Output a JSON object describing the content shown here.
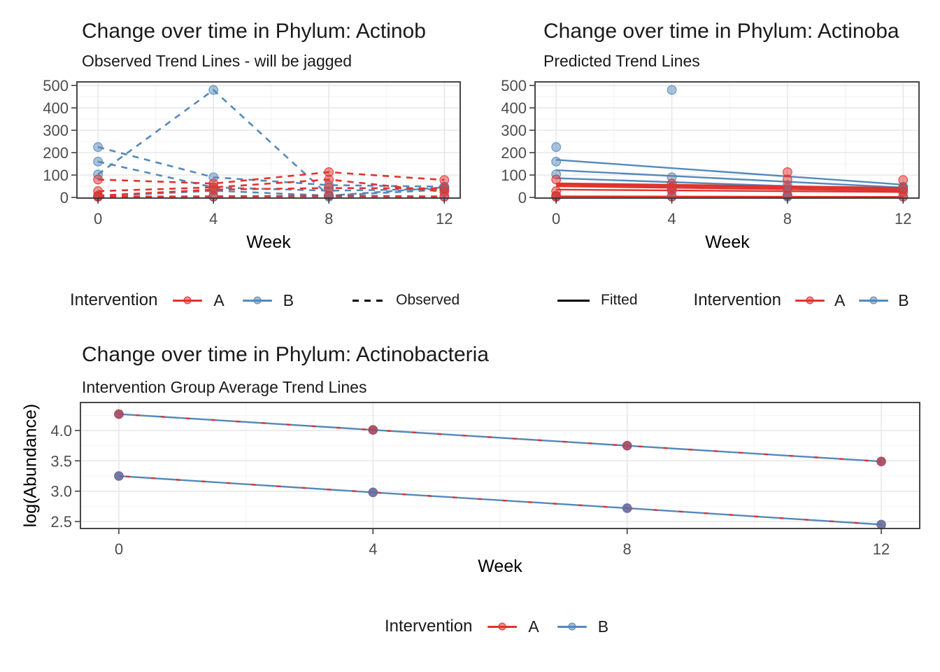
{
  "colors": {
    "intervention_a": "#E0332E",
    "intervention_b": "#5589BB",
    "avg_point_a": "#A4455C",
    "avg_point_b": "#666A9A",
    "grid_major": "#E5E5E5",
    "grid_minor": "#F2F2F2",
    "panel_border": "#333333",
    "tick_label": "#4D4D4D",
    "linetype_key": "#000000"
  },
  "chart_data": [
    {
      "id": "observed",
      "type": "line",
      "title": "Change over time in Phylum: Actinob",
      "subtitle": "Observed Trend Lines - will be jagged",
      "xlabel": "Week",
      "x_ticks": [
        0,
        4,
        8,
        12
      ],
      "x_minor": [
        2,
        6,
        10
      ],
      "y_ticks": [
        0,
        100,
        200,
        300,
        400,
        500
      ],
      "y_minor": [
        50,
        150,
        250,
        350,
        450
      ],
      "xlim": [
        -0.73,
        12.55
      ],
      "ylim": [
        -3,
        516
      ],
      "grid": true,
      "legend_position": "bottom",
      "series": [
        {
          "group": "B",
          "x": [
            0,
            4,
            8,
            12
          ],
          "y": [
            225,
            90,
            55,
            48
          ],
          "line": "dashed",
          "points": true
        },
        {
          "group": "B",
          "x": [
            0,
            4,
            8,
            12
          ],
          "y": [
            160,
            45,
            30,
            38
          ],
          "line": "dashed",
          "points": true
        },
        {
          "group": "B",
          "x": [
            0,
            4,
            8,
            12
          ],
          "y": [
            103,
            480,
            8,
            45
          ],
          "line": "dashed",
          "points": true
        },
        {
          "group": "B",
          "x": [
            0,
            4,
            8,
            12
          ],
          "y": [
            5,
            30,
            8,
            35
          ],
          "line": "dashed",
          "points": true
        },
        {
          "group": "B",
          "x": [
            0,
            4,
            8,
            12
          ],
          "y": [
            3,
            3,
            3,
            3
          ],
          "line": "dashed",
          "points": true
        },
        {
          "group": "A",
          "x": [
            0,
            4,
            8,
            12
          ],
          "y": [
            80,
            62,
            113,
            78
          ],
          "line": "dashed",
          "points": true
        },
        {
          "group": "A",
          "x": [
            0,
            4,
            8,
            12
          ],
          "y": [
            28,
            45,
            80,
            25
          ],
          "line": "dashed",
          "points": true
        },
        {
          "group": "A",
          "x": [
            0,
            4,
            8,
            12
          ],
          "y": [
            8,
            35,
            42,
            40
          ],
          "line": "dashed",
          "points": true
        },
        {
          "group": "A",
          "x": [
            0,
            4,
            8,
            12
          ],
          "y": [
            3,
            5,
            8,
            4
          ],
          "line": "dashed",
          "points": true
        }
      ]
    },
    {
      "id": "fitted",
      "type": "line",
      "title": "Change over time in Phylum: Actinoba",
      "subtitle": "Predicted Trend Lines",
      "xlabel": "Week",
      "x_ticks": [
        0,
        4,
        8,
        12
      ],
      "x_minor": [
        2,
        6,
        10
      ],
      "y_ticks": [
        0,
        100,
        200,
        300,
        400,
        500
      ],
      "y_minor": [
        50,
        150,
        250,
        350,
        450
      ],
      "xlim": [
        -0.73,
        12.55
      ],
      "ylim": [
        -3,
        516
      ],
      "grid": true,
      "legend_position": "bottom",
      "series": [
        {
          "group": "B",
          "x": [
            0,
            12
          ],
          "y": [
            168,
            57
          ],
          "line": "solid",
          "points": false
        },
        {
          "group": "B",
          "x": [
            0,
            12
          ],
          "y": [
            122,
            44
          ],
          "line": "solid",
          "points": false
        },
        {
          "group": "B",
          "x": [
            0,
            12
          ],
          "y": [
            86,
            33
          ],
          "line": "solid",
          "points": false
        },
        {
          "group": "B",
          "x": [
            0,
            12
          ],
          "y": [
            5,
            2
          ],
          "line": "solid",
          "points": false
        },
        {
          "group": "A",
          "x": [
            0,
            12
          ],
          "y": [
            63,
            43
          ],
          "line": "solid",
          "points": false
        },
        {
          "group": "A",
          "x": [
            0,
            12
          ],
          "y": [
            57,
            37
          ],
          "line": "solid",
          "points": false
        },
        {
          "group": "A",
          "x": [
            0,
            12
          ],
          "y": [
            50,
            30
          ],
          "line": "solid",
          "points": false
        },
        {
          "group": "A",
          "x": [
            0,
            12
          ],
          "y": [
            35,
            24
          ],
          "line": "solid",
          "points": false
        },
        {
          "group": "A",
          "x": [
            0,
            12
          ],
          "y": [
            4,
            2
          ],
          "line": "solid",
          "points": false
        },
        {
          "group": "B",
          "x": [
            0,
            4,
            8,
            12
          ],
          "y": [
            225,
            90,
            55,
            48
          ],
          "line": "none",
          "points": true
        },
        {
          "group": "B",
          "x": [
            0,
            4,
            8,
            12
          ],
          "y": [
            160,
            45,
            30,
            38
          ],
          "line": "none",
          "points": true
        },
        {
          "group": "B",
          "x": [
            0,
            4,
            8,
            12
          ],
          "y": [
            103,
            480,
            8,
            45
          ],
          "line": "none",
          "points": true
        },
        {
          "group": "B",
          "x": [
            0,
            4,
            8,
            12
          ],
          "y": [
            5,
            30,
            8,
            35
          ],
          "line": "none",
          "points": true
        },
        {
          "group": "B",
          "x": [
            0,
            4,
            8,
            12
          ],
          "y": [
            3,
            3,
            3,
            3
          ],
          "line": "none",
          "points": true
        },
        {
          "group": "A",
          "x": [
            0,
            4,
            8,
            12
          ],
          "y": [
            80,
            62,
            113,
            78
          ],
          "line": "none",
          "points": true
        },
        {
          "group": "A",
          "x": [
            0,
            4,
            8,
            12
          ],
          "y": [
            28,
            45,
            80,
            25
          ],
          "line": "none",
          "points": true
        },
        {
          "group": "A",
          "x": [
            0,
            4,
            8,
            12
          ],
          "y": [
            8,
            35,
            42,
            40
          ],
          "line": "none",
          "points": true
        },
        {
          "group": "A",
          "x": [
            0,
            4,
            8,
            12
          ],
          "y": [
            3,
            5,
            8,
            4
          ],
          "line": "none",
          "points": true
        }
      ]
    },
    {
      "id": "group-average",
      "type": "line",
      "title": "Change over time in Phylum: Actinobacteria",
      "subtitle": "Intervention Group Average Trend Lines",
      "xlabel": "Week",
      "ylabel": "log(Abundance)",
      "x_ticks": [
        0,
        4,
        8,
        12
      ],
      "x_minor": [
        2,
        6,
        10
      ],
      "y_ticks": [
        2.5,
        3.0,
        3.5,
        4.0
      ],
      "y_tick_labels": [
        "2.5",
        "3.0",
        "3.5",
        "4.0"
      ],
      "y_minor": [
        2.75,
        3.25,
        3.75,
        4.25
      ],
      "xlim": [
        -0.605,
        12.605
      ],
      "ylim": [
        2.385,
        4.4615
      ],
      "grid": true,
      "legend_position": "bottom",
      "series": [
        {
          "group": "A",
          "x": [
            0,
            4,
            8,
            12
          ],
          "y": [
            4.27,
            4.01,
            3.75,
            3.49
          ],
          "line": "double",
          "points": true,
          "point_fill": "#A4455C"
        },
        {
          "group": "B",
          "x": [
            0,
            4,
            8,
            12
          ],
          "y": [
            3.25,
            2.98,
            2.72,
            2.45
          ],
          "line": "double",
          "points": true,
          "point_fill": "#666A9A"
        }
      ]
    }
  ],
  "legends": {
    "observed": {
      "group_title": "Intervention",
      "a_label": "A",
      "b_label": "B",
      "linetype_label": "Observed"
    },
    "fitted": {
      "linetype_label": "Fitted",
      "group_title": "Intervention",
      "a_label": "A",
      "b_label": "B"
    },
    "average": {
      "group_title": "Intervention",
      "a_label": "A",
      "b_label": "B"
    }
  }
}
